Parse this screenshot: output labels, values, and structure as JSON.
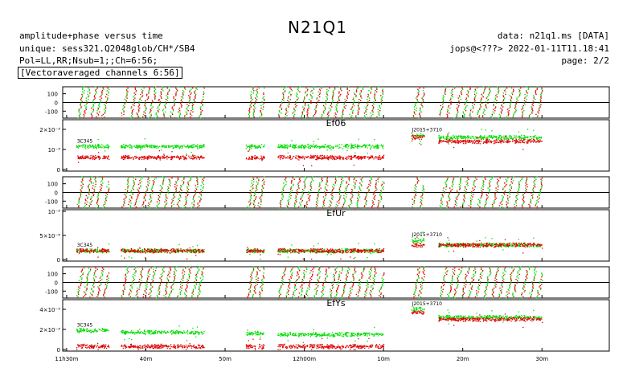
{
  "header": {
    "title": "N21Q1",
    "left_lines": [
      "amplitude+phase versus time",
      "unique: sess321.Q2048glob/CH*/SB4",
      "Pol=LL,RR;Nsub=1;;Ch=6:56;",
      "[Vectoraveraged channels 6:56]"
    ],
    "right_lines": [
      "data: n21q1.ms [DATA]",
      "jops@<???> 2022-01-11T11.18:41",
      "page: 2/2"
    ]
  },
  "colors": {
    "ll": "#e00000",
    "rr": "#00dd00",
    "axis": "#000000"
  },
  "chart_data": {
    "type": "scatter",
    "x_tick_labels": [
      "11h30m",
      "40m",
      "50m",
      "12h00m",
      "10m",
      "20m",
      "30m"
    ],
    "x_ticks_minutes": [
      690,
      700,
      710,
      720,
      730,
      740,
      750
    ],
    "xlim_minutes": [
      689.5,
      758.5
    ],
    "scans_minutes": [
      [
        691.2,
        695.3
      ],
      [
        696.8,
        707.3
      ],
      [
        712.6,
        714.9
      ],
      [
        716.6,
        730.0
      ],
      [
        733.5,
        735.1
      ],
      [
        736.9,
        750.0
      ]
    ],
    "series_names": [
      "LL",
      "RR"
    ],
    "panels": [
      {
        "station": "Ef06",
        "phase": {
          "yticks": [
            -100,
            0,
            100
          ],
          "ylim": [
            -180,
            180
          ]
        },
        "amplitude": {
          "ytick_labels": [
            "0",
            "10⁻³",
            "2×10⁻³"
          ],
          "ytick_values": [
            0,
            0.001,
            0.002
          ],
          "ylim": [
            0,
            0.0024
          ],
          "annotations": [
            {
              "text": "3C345",
              "x": 691.3
            },
            {
              "text": "J2015+3710",
              "x": 733.6
            }
          ],
          "segments": [
            {
              "x": [
                691.2,
                695.3
              ],
              "ll": 0.0006,
              "rr": 0.00115
            },
            {
              "x": [
                696.8,
                707.3
              ],
              "ll": 0.0006,
              "rr": 0.00115
            },
            {
              "x": [
                712.6,
                714.9
              ],
              "ll": 0.0006,
              "rr": 0.00115
            },
            {
              "x": [
                716.6,
                730.0
              ],
              "ll": 0.0006,
              "rr": 0.00115
            },
            {
              "x": [
                733.5,
                735.1
              ],
              "ll": 0.0016,
              "rr": 0.0017
            },
            {
              "x": [
                736.9,
                750.0
              ],
              "ll": 0.0014,
              "rr": 0.0016
            }
          ]
        }
      },
      {
        "station": "EfUr",
        "phase": {
          "yticks": [
            -100,
            0,
            100
          ],
          "ylim": [
            -180,
            180
          ]
        },
        "amplitude": {
          "ytick_labels": [
            "0",
            "5×10⁻⁴",
            "10⁻³"
          ],
          "ytick_values": [
            0,
            0.0005,
            0.001
          ],
          "ylim": [
            0,
            0.001
          ],
          "annotations": [
            {
              "text": "3C345",
              "x": 691.3
            },
            {
              "text": "J2015+3710",
              "x": 733.6
            }
          ],
          "segments": [
            {
              "x": [
                691.2,
                695.3
              ],
              "ll": 0.00018,
              "rr": 0.00018
            },
            {
              "x": [
                696.8,
                707.3
              ],
              "ll": 0.00018,
              "rr": 0.00018
            },
            {
              "x": [
                712.6,
                714.9
              ],
              "ll": 0.00018,
              "rr": 0.00018
            },
            {
              "x": [
                716.6,
                730.0
              ],
              "ll": 0.00018,
              "rr": 0.00018
            },
            {
              "x": [
                733.5,
                735.1
              ],
              "ll": 0.0003,
              "rr": 0.0004
            },
            {
              "x": [
                736.9,
                750.0
              ],
              "ll": 0.0003,
              "rr": 0.0003
            }
          ]
        }
      },
      {
        "station": "EfYs",
        "phase": {
          "yticks": [
            -100,
            0,
            100
          ],
          "ylim": [
            -180,
            180
          ]
        },
        "amplitude": {
          "ytick_labels": [
            "0",
            "2×10⁻³",
            "4×10⁻³"
          ],
          "ytick_values": [
            0,
            0.002,
            0.004
          ],
          "ylim": [
            0,
            0.0048
          ],
          "annotations": [
            {
              "text": "3C345",
              "x": 691.3
            },
            {
              "text": "J2015+3710",
              "x": 733.6
            }
          ],
          "segments": [
            {
              "x": [
                691.2,
                695.3
              ],
              "ll": 0.0003,
              "rr": 0.0019
            },
            {
              "x": [
                696.8,
                707.3
              ],
              "ll": 0.0003,
              "rr": 0.0017
            },
            {
              "x": [
                712.6,
                714.9
              ],
              "ll": 0.0003,
              "rr": 0.0016
            },
            {
              "x": [
                716.6,
                730.0
              ],
              "ll": 0.0003,
              "rr": 0.0015
            },
            {
              "x": [
                733.5,
                735.1
              ],
              "ll": 0.0037,
              "rr": 0.004
            },
            {
              "x": [
                736.9,
                750.0
              ],
              "ll": 0.003,
              "rr": 0.0032
            }
          ]
        }
      }
    ]
  }
}
